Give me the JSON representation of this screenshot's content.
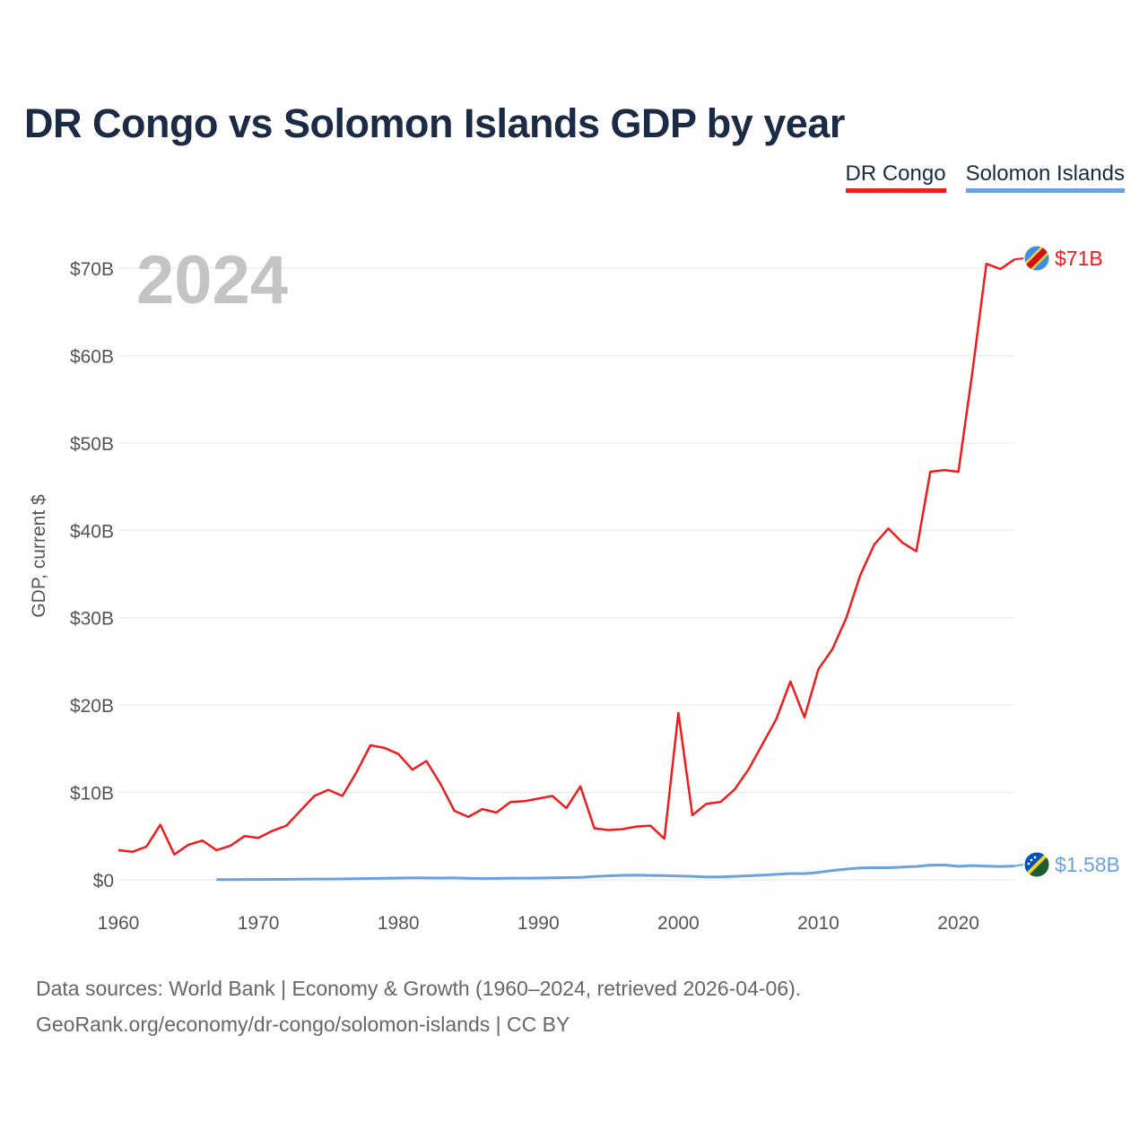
{
  "header": {
    "title": "DR Congo vs Solomon Islands GDP by year"
  },
  "legend": {
    "drc": "DR Congo",
    "sol": "Solomon Islands"
  },
  "colors": {
    "drc": "#ee1c1c",
    "sol": "#6aa2e0",
    "grid": "#e6e6e6",
    "text": "#1b2a45"
  },
  "footer": {
    "line1": "Data sources: World Bank | Economy & Growth (1960–2024, retrieved 2026-04-06).",
    "line2": "GeoRank.org/economy/dr-congo/solomon-islands | CC BY"
  },
  "chart_data": {
    "type": "line",
    "title": "DR Congo vs Solomon Islands GDP by year",
    "current_year": "2024",
    "ylabel": "GDP, current $",
    "xlabel": "",
    "xlim": [
      1960,
      2024
    ],
    "ylim": [
      0,
      70
    ],
    "unit": "billion USD",
    "x_ticks": [
      1960,
      1970,
      1980,
      1990,
      2000,
      2010,
      2020
    ],
    "y_ticks": [
      {
        "value": 0,
        "label": "$0"
      },
      {
        "value": 10,
        "label": "$10B"
      },
      {
        "value": 20,
        "label": "$20B"
      },
      {
        "value": 30,
        "label": "$30B"
      },
      {
        "value": 40,
        "label": "$40B"
      },
      {
        "value": 50,
        "label": "$50B"
      },
      {
        "value": 60,
        "label": "$60B"
      },
      {
        "value": 70,
        "label": "$70B"
      }
    ],
    "series": [
      {
        "name": "DR Congo",
        "key": "drc",
        "end_label": "$71B",
        "points": [
          [
            1960,
            3.4
          ],
          [
            1961,
            3.2
          ],
          [
            1962,
            3.8
          ],
          [
            1963,
            6.3
          ],
          [
            1964,
            2.9
          ],
          [
            1965,
            4.0
          ],
          [
            1966,
            4.5
          ],
          [
            1967,
            3.4
          ],
          [
            1968,
            3.9
          ],
          [
            1969,
            5.0
          ],
          [
            1970,
            4.8
          ],
          [
            1971,
            5.6
          ],
          [
            1972,
            6.2
          ],
          [
            1973,
            7.9
          ],
          [
            1974,
            9.6
          ],
          [
            1975,
            10.3
          ],
          [
            1976,
            9.6
          ],
          [
            1977,
            12.3
          ],
          [
            1978,
            15.4
          ],
          [
            1979,
            15.1
          ],
          [
            1980,
            14.4
          ],
          [
            1981,
            12.6
          ],
          [
            1982,
            13.6
          ],
          [
            1983,
            11.0
          ],
          [
            1984,
            7.9
          ],
          [
            1985,
            7.2
          ],
          [
            1986,
            8.1
          ],
          [
            1987,
            7.7
          ],
          [
            1988,
            8.9
          ],
          [
            1989,
            9.0
          ],
          [
            1990,
            9.3
          ],
          [
            1991,
            9.6
          ],
          [
            1992,
            8.2
          ],
          [
            1993,
            10.7
          ],
          [
            1994,
            5.9
          ],
          [
            1995,
            5.7
          ],
          [
            1996,
            5.8
          ],
          [
            1997,
            6.1
          ],
          [
            1998,
            6.2
          ],
          [
            1999,
            4.7
          ],
          [
            2000,
            19.1
          ],
          [
            2001,
            7.4
          ],
          [
            2002,
            8.7
          ],
          [
            2003,
            8.9
          ],
          [
            2004,
            10.3
          ],
          [
            2005,
            12.6
          ],
          [
            2006,
            15.5
          ],
          [
            2007,
            18.4
          ],
          [
            2008,
            22.7
          ],
          [
            2009,
            18.6
          ],
          [
            2010,
            24.1
          ],
          [
            2011,
            26.4
          ],
          [
            2012,
            30.0
          ],
          [
            2013,
            34.9
          ],
          [
            2014,
            38.4
          ],
          [
            2015,
            40.2
          ],
          [
            2016,
            38.6
          ],
          [
            2017,
            37.6
          ],
          [
            2018,
            46.7
          ],
          [
            2019,
            46.9
          ],
          [
            2020,
            46.7
          ],
          [
            2021,
            58.1
          ],
          [
            2022,
            70.5
          ],
          [
            2023,
            69.9
          ],
          [
            2024,
            71.0
          ]
        ]
      },
      {
        "name": "Solomon Islands",
        "key": "sol",
        "end_label": "$1.58B",
        "points": [
          [
            1967,
            0.03
          ],
          [
            1968,
            0.03
          ],
          [
            1969,
            0.04
          ],
          [
            1970,
            0.04
          ],
          [
            1971,
            0.05
          ],
          [
            1972,
            0.05
          ],
          [
            1973,
            0.07
          ],
          [
            1974,
            0.09
          ],
          [
            1975,
            0.09
          ],
          [
            1976,
            0.1
          ],
          [
            1977,
            0.12
          ],
          [
            1978,
            0.15
          ],
          [
            1979,
            0.18
          ],
          [
            1980,
            0.21
          ],
          [
            1981,
            0.23
          ],
          [
            1982,
            0.22
          ],
          [
            1983,
            0.21
          ],
          [
            1984,
            0.23
          ],
          [
            1985,
            0.17
          ],
          [
            1986,
            0.14
          ],
          [
            1987,
            0.16
          ],
          [
            1988,
            0.19
          ],
          [
            1989,
            0.19
          ],
          [
            1990,
            0.21
          ],
          [
            1991,
            0.23
          ],
          [
            1992,
            0.26
          ],
          [
            1993,
            0.29
          ],
          [
            1994,
            0.38
          ],
          [
            1995,
            0.46
          ],
          [
            1996,
            0.51
          ],
          [
            1997,
            0.54
          ],
          [
            1998,
            0.5
          ],
          [
            1999,
            0.48
          ],
          [
            2000,
            0.43
          ],
          [
            2001,
            0.4
          ],
          [
            2002,
            0.34
          ],
          [
            2003,
            0.34
          ],
          [
            2004,
            0.4
          ],
          [
            2005,
            0.46
          ],
          [
            2006,
            0.53
          ],
          [
            2007,
            0.63
          ],
          [
            2008,
            0.72
          ],
          [
            2009,
            0.71
          ],
          [
            2010,
            0.85
          ],
          [
            2011,
            1.07
          ],
          [
            2012,
            1.23
          ],
          [
            2013,
            1.35
          ],
          [
            2014,
            1.4
          ],
          [
            2015,
            1.39
          ],
          [
            2016,
            1.46
          ],
          [
            2017,
            1.53
          ],
          [
            2018,
            1.68
          ],
          [
            2019,
            1.69
          ],
          [
            2020,
            1.55
          ],
          [
            2021,
            1.63
          ],
          [
            2022,
            1.57
          ],
          [
            2023,
            1.53
          ],
          [
            2024,
            1.58
          ]
        ]
      }
    ]
  }
}
